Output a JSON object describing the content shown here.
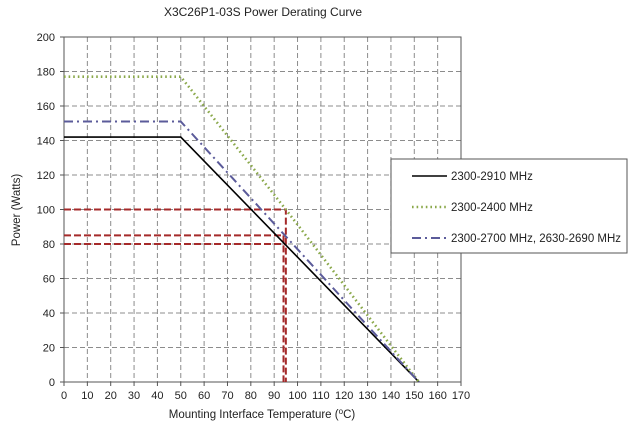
{
  "chart_data": {
    "type": "line",
    "title": "X3C26P1-03S Power Derating Curve",
    "xlabel_main": "Mounting Interface Temperature (",
    "xlabel_sup": "o",
    "xlabel_end": "C)",
    "ylabel": "Power (Watts)",
    "xlim": [
      0,
      170
    ],
    "ylim": [
      0,
      200
    ],
    "xticks": [
      0,
      10,
      20,
      30,
      40,
      50,
      60,
      70,
      80,
      90,
      100,
      110,
      120,
      130,
      140,
      150,
      160,
      170
    ],
    "yticks": [
      0,
      20,
      40,
      60,
      80,
      100,
      120,
      140,
      160,
      180,
      200
    ],
    "grid": true,
    "legend_position": "right",
    "series": [
      {
        "name": "2300-2910 MHz",
        "color": "#000000",
        "dash": "solid",
        "x": [
          0,
          50,
          152
        ],
        "y": [
          142,
          142,
          0
        ]
      },
      {
        "name": "2300-2400 MHz",
        "color": "#8aa84a",
        "dash": "dotted",
        "x": [
          0,
          50,
          95,
          152
        ],
        "y": [
          177,
          177,
          100,
          0
        ]
      },
      {
        "name": "2300-2700 MHz, 2630-2690 MHz",
        "color": "#5b5b9a",
        "dash": "dashdot",
        "x": [
          0,
          50,
          152
        ],
        "y": [
          151,
          151,
          0
        ]
      }
    ],
    "reference_lines": [
      {
        "color": "#a52a2a",
        "x": [
          0,
          95,
          95
        ],
        "y": [
          100,
          100,
          0
        ]
      },
      {
        "color": "#a52a2a",
        "x": [
          0,
          95
        ],
        "y": [
          85,
          85
        ]
      },
      {
        "color": "#a52a2a",
        "x": [
          0,
          95
        ],
        "y": [
          80,
          80
        ]
      },
      {
        "color": "#a52a2a",
        "x": [
          94,
          94
        ],
        "y": [
          85,
          0
        ]
      }
    ]
  }
}
